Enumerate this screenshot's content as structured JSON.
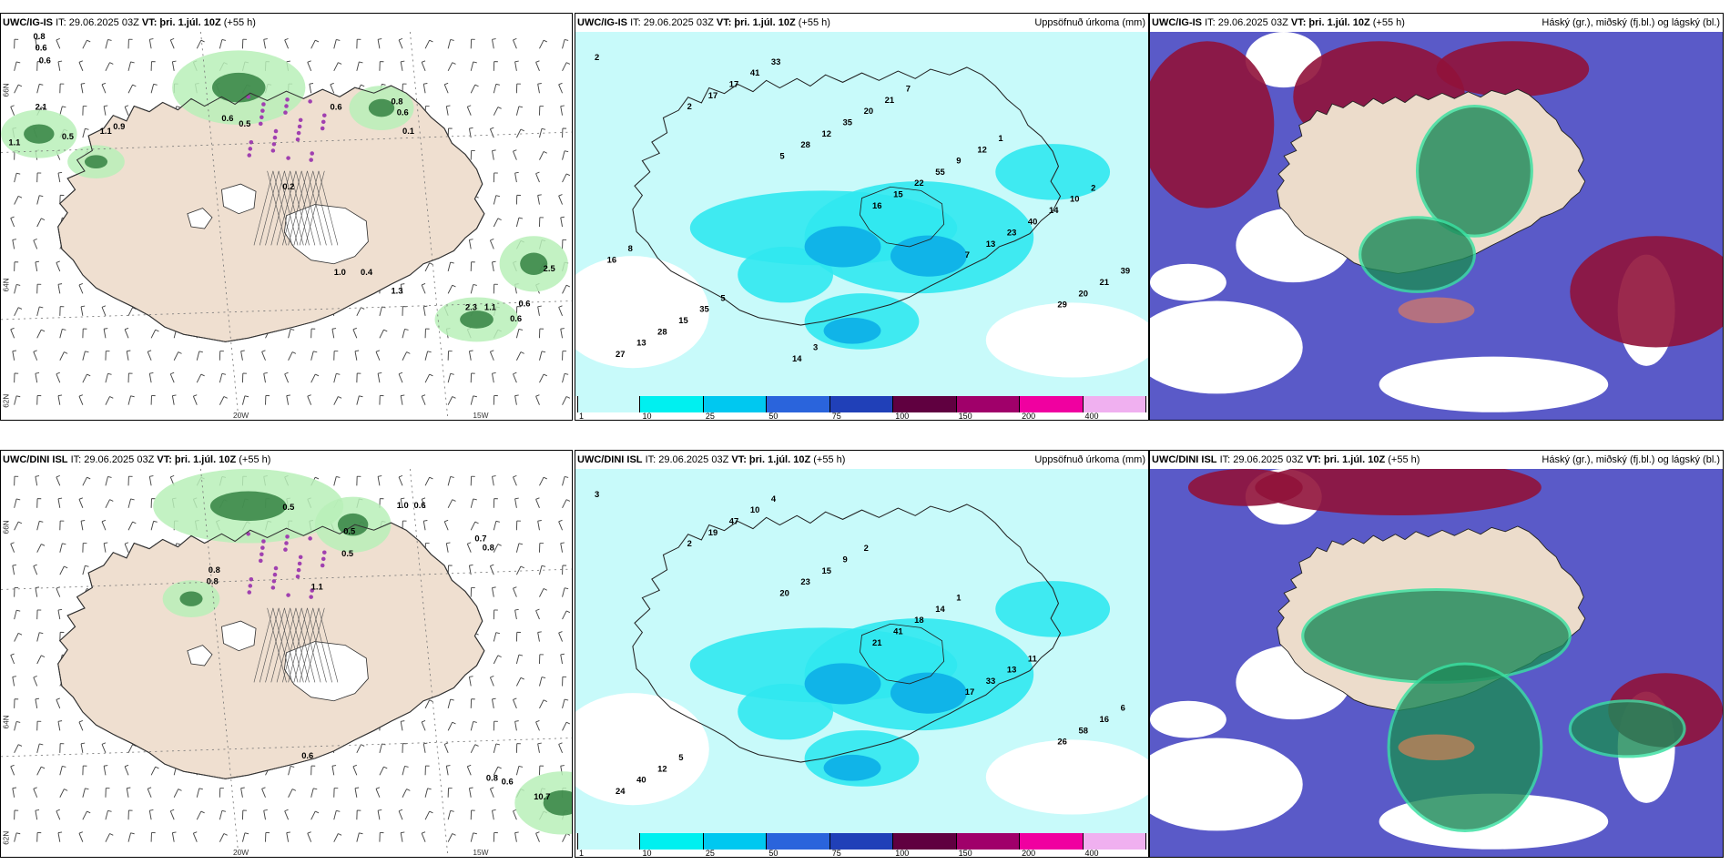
{
  "panels": [
    {
      "model": "UWC/IG-IS",
      "issue": "IT: 29.06.2025 03Z",
      "valid_label": "VT:",
      "valid": "þri. 1.júl. 10Z",
      "lead": "(+55 h)",
      "product": "",
      "values": [
        "0.8",
        "0.6",
        "0.6",
        "2.1",
        "1.1",
        "0.5",
        "1.1",
        "0.9",
        "0.6",
        "0.5",
        "0.2",
        "0.8",
        "0.6",
        "0.1",
        "0.6",
        "1.0",
        "0.4",
        "1.3",
        "2.3",
        "1.1",
        "0.6",
        "0.6",
        "2.5",
        "0.9"
      ]
    },
    {
      "model": "UWC/IG-IS",
      "issue": "IT: 29.06.2025 03Z",
      "valid_label": "VT:",
      "valid": "þri. 1.júl. 10Z",
      "lead": "(+55 h)",
      "product": "Uppsöfnuð úrkoma (mm)",
      "values": [
        "2",
        "2",
        "5",
        "16",
        "7",
        "29",
        "27",
        "17",
        "28",
        "15",
        "13",
        "20",
        "13",
        "17",
        "12",
        "22",
        "23",
        "21",
        "28",
        "41",
        "35",
        "55",
        "40",
        "39",
        "15",
        "33",
        "20",
        "9",
        "14",
        "16",
        "35",
        "14",
        "21",
        "12",
        "10",
        "8",
        "5",
        "3",
        "7",
        "1",
        "2"
      ]
    },
    {
      "model": "UWC/IG-IS",
      "issue": "IT: 29.06.2025 03Z",
      "valid_label": "VT:",
      "valid": "þri. 1.júl. 10Z",
      "lead": "(+55 h)",
      "product": "Háský (gr.), miðský (fj.bl.) og lágský (bl.)",
      "values": []
    },
    {
      "model": "UWC/DINI ISL",
      "issue": "IT: 29.06.2025 03Z",
      "valid_label": "VT:",
      "valid": "þri. 1.júl. 10Z",
      "lead": "(+55 h)",
      "product": "",
      "values": [
        "0.5",
        "1.0",
        "0.6",
        "0.5",
        "0.5",
        "1.1",
        "0.8",
        "0.8",
        "0.7",
        "0.8",
        "0.6",
        "0.8",
        "10.7",
        "0.6"
      ]
    },
    {
      "model": "UWC/DINI ISL",
      "issue": "IT: 29.06.2025 03Z",
      "valid_label": "VT:",
      "valid": "þri. 1.júl. 10Z",
      "lead": "(+55 h)",
      "product": "Uppsöfnuð úrkoma (mm)",
      "values": [
        "3",
        "2",
        "20",
        "21",
        "17",
        "26",
        "24",
        "19",
        "23",
        "41",
        "33",
        "58",
        "40",
        "47",
        "15",
        "18",
        "13",
        "16",
        "12",
        "10",
        "9",
        "14",
        "11",
        "6",
        "5",
        "4",
        "2",
        "1"
      ]
    },
    {
      "model": "UWC/DINI ISL",
      "issue": "IT: 29.06.2025 03Z",
      "valid_label": "VT:",
      "valid": "þri. 1.júl. 10Z",
      "lead": "(+55 h)",
      "product": "Háský (gr.), miðský (fj.bl.) og lágský (bl.)",
      "values": []
    }
  ],
  "grid_labels": {
    "lat_66": "66N",
    "lat_64": "64N",
    "lat_62": "62N",
    "lon_20": "20W",
    "lon_15": "15W"
  },
  "colorbar": {
    "labels": [
      "1",
      "10",
      "25",
      "50",
      "75",
      "100",
      "150",
      "200",
      "400"
    ],
    "colors": [
      "#c8fafa",
      "#00f0f0",
      "#00c8f0",
      "#2a64dc",
      "#2040b8",
      "#600040",
      "#a0006a",
      "#f000a0",
      "#f0b0f0"
    ]
  }
}
